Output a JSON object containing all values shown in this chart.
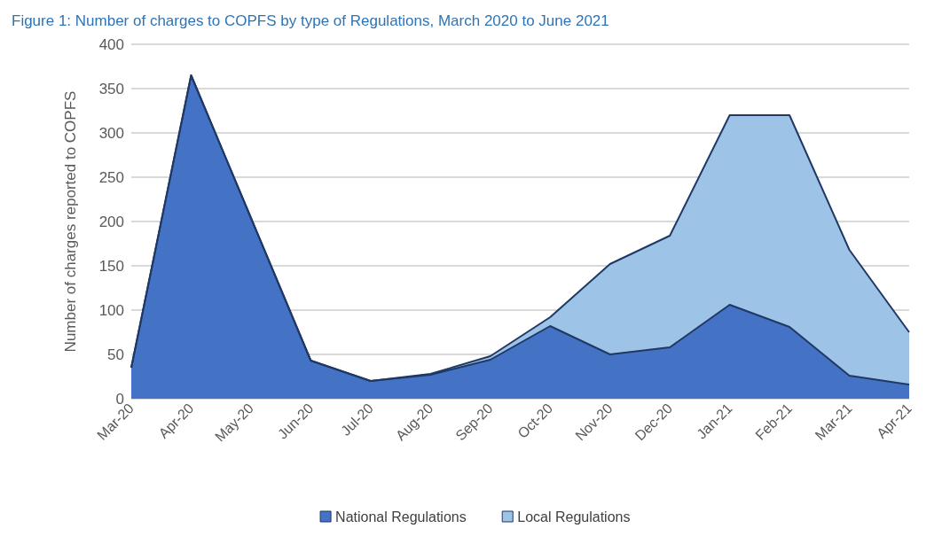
{
  "chart_data": {
    "type": "area",
    "stacked": true,
    "title": "Figure 1: Number of charges to COPFS by type of Regulations, March 2020 to June 2021",
    "ylabel": "Number of charges reported to COPFS",
    "categories": [
      "Mar-20",
      "Apr-20",
      "May-20",
      "Jun-20",
      "Jul-20",
      "Aug-20",
      "Sep-20",
      "Oct-20",
      "Nov-20",
      "Dec-20",
      "Jan-21",
      "Feb-21",
      "Mar-21",
      "Apr-21"
    ],
    "series": [
      {
        "name": "National Regulations",
        "color": "#4472c4",
        "values": [
          35,
          365,
          204,
          43,
          20,
          27,
          44,
          82,
          50,
          58,
          106,
          81,
          26,
          16
        ]
      },
      {
        "name": "Local Regulations",
        "color": "#9dc3e6",
        "values": [
          0,
          0,
          0,
          0,
          0,
          1,
          4,
          10,
          102,
          126,
          214,
          239,
          142,
          59
        ]
      }
    ],
    "ylim": [
      0,
      400
    ],
    "yticks": [
      0,
      50,
      100,
      150,
      200,
      250,
      300,
      350,
      400
    ],
    "grid": "y",
    "legend": "bottom"
  }
}
